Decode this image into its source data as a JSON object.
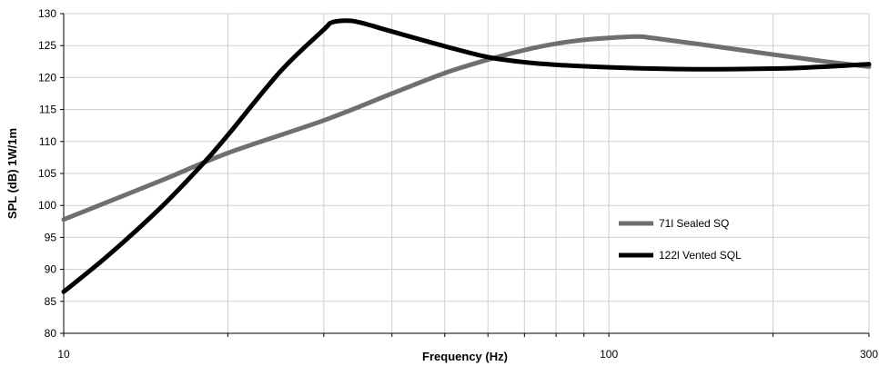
{
  "chart_data": {
    "type": "line",
    "title": "",
    "xlabel": "Frequency (Hz)",
    "ylabel": "SPL (dB) 1W/1m",
    "x_scale": "log",
    "xlim": [
      10,
      300
    ],
    "ylim": [
      80,
      130
    ],
    "x_ticks": [
      10,
      20,
      30,
      40,
      50,
      60,
      70,
      80,
      90,
      100,
      200,
      300
    ],
    "x_tick_labels": [
      {
        "value": 10,
        "label": "10"
      },
      {
        "value": 100,
        "label": "100"
      },
      {
        "value": 300,
        "label": "300"
      }
    ],
    "y_ticks": [
      80,
      85,
      90,
      95,
      100,
      105,
      110,
      115,
      120,
      125,
      130
    ],
    "y_tick_labels": [
      "80",
      "85",
      "90",
      "95",
      "100",
      "105",
      "110",
      "115",
      "120",
      "125",
      "130"
    ],
    "grid": true,
    "legend_position": "right-center",
    "series": [
      {
        "name": "71l Sealed SQ",
        "color": "#6f6f6f",
        "x": [
          10,
          15,
          20,
          30,
          40,
          50,
          60,
          70,
          80,
          90,
          100,
          110,
          115,
          120,
          150,
          200,
          250,
          300
        ],
        "y": [
          97.8,
          103.8,
          108.2,
          113.3,
          117.5,
          120.7,
          122.8,
          124.3,
          125.3,
          125.9,
          126.2,
          126.4,
          126.4,
          126.2,
          125.1,
          123.6,
          122.5,
          121.7
        ]
      },
      {
        "name": "122l Vented SQL",
        "color": "#000000",
        "x": [
          10,
          12,
          15,
          18,
          20,
          25,
          30,
          31,
          33,
          35,
          40,
          50,
          60,
          70,
          80,
          100,
          120,
          150,
          200,
          250,
          300
        ],
        "y": [
          86.5,
          92,
          99.5,
          106.5,
          111,
          121,
          127.5,
          128.6,
          128.9,
          128.6,
          127.2,
          124.9,
          123.2,
          122.4,
          122,
          121.6,
          121.4,
          121.3,
          121.4,
          121.7,
          122.1
        ]
      }
    ]
  }
}
